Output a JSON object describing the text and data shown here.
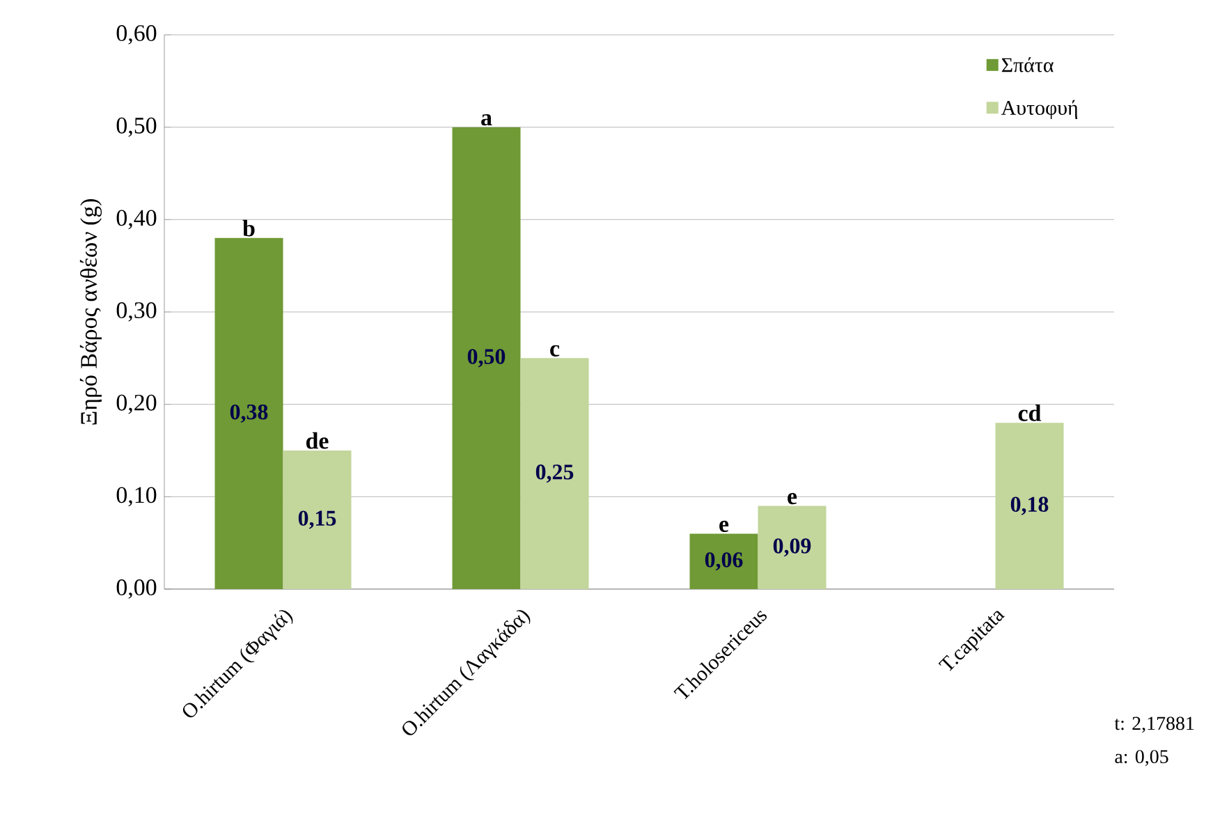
{
  "chart_data": {
    "type": "bar",
    "ylabel": "Ξηρό Βάρος ανθέων (g)",
    "categories": [
      "O.hirtum (Φαγιά)",
      "O.hirtum (Λαγκάδα)",
      "T.holosericeus",
      "T.capitata"
    ],
    "series": [
      {
        "name": "Σπάτα",
        "color": "#6f9a35",
        "values": [
          0.38,
          0.5,
          0.06,
          null
        ],
        "value_labels": [
          "0,38",
          "0,50",
          "0,06",
          null
        ]
      },
      {
        "name": "Αυτοφυή",
        "color": "#c3d69b",
        "values": [
          0.15,
          0.25,
          0.09,
          0.18
        ],
        "value_labels": [
          "0,15",
          "0,25",
          "0,09",
          "0,18"
        ]
      }
    ],
    "ylim": [
      0,
      0.6
    ],
    "yticks": [
      {
        "value": 0,
        "label": "0,00"
      },
      {
        "value": 0.1,
        "label": "0,10"
      },
      {
        "value": 0.2,
        "label": "0,20"
      },
      {
        "value": 0.3,
        "label": "0,30"
      },
      {
        "value": 0.4,
        "label": "0,40"
      },
      {
        "value": 0.5,
        "label": "0,50"
      },
      {
        "value": 0.6,
        "label": "0,60"
      }
    ],
    "grid": "y",
    "legend": "top right",
    "annotations": [
      {
        "text": "b",
        "x": "O.hirtum (Φαγιά)",
        "y": 0.38
      },
      {
        "text": "de",
        "x": "O.hirtum (Φαγιά)",
        "y": 0.15
      },
      {
        "text": "a",
        "x": "O.hirtum (Λαγκάδα)",
        "y": 0.5
      },
      {
        "text": "c",
        "x": "O.hirtum (Λαγκάδα)",
        "y": 0.25
      },
      {
        "text": "e",
        "x": "T.holosericeus",
        "y": 0.06
      },
      {
        "text": "e",
        "x": "T.holosericeus",
        "y": 0.09
      },
      {
        "text": "cd",
        "x": "T.capitata",
        "y": 0.18
      },
      "t: 2,17881",
      "a: 0,05"
    ]
  }
}
